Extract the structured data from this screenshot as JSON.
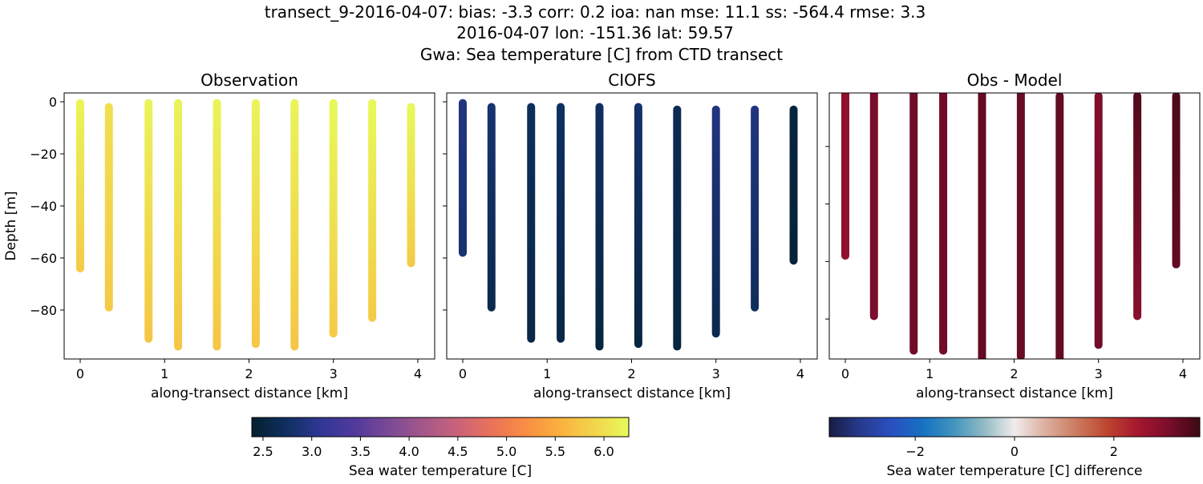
{
  "title_lines": [
    "transect_9-2016-04-07: bias: -3.3  corr: 0.2  ioa: nan  mse: 11.1  ss: -564.4  rmse: 3.3",
    "2016-04-07 lon: -151.36 lat: 59.57",
    "Gwa: Sea temperature [C] from CTD transect"
  ],
  "chart_data": [
    {
      "type": "scatter",
      "title": "Observation",
      "xlabel": "along-transect distance [km]",
      "ylabel": "Depth [m]",
      "xlim": [
        -0.19,
        4.2
      ],
      "ylim": [
        -98.8,
        3.4
      ],
      "xticks": [
        0,
        1,
        2,
        3,
        4
      ],
      "yticks": [
        0,
        -20,
        -40,
        -60,
        -80
      ],
      "colormap": "thermal",
      "profiles": [
        {
          "x": 0.0,
          "top": -0.5,
          "bottom": -64,
          "t_top": 6.2,
          "t_bottom": 5.8
        },
        {
          "x": 0.34,
          "top": -2,
          "bottom": -79,
          "t_top": 6.0,
          "t_bottom": 5.8
        },
        {
          "x": 0.81,
          "top": -0.5,
          "bottom": -91,
          "t_top": 6.2,
          "t_bottom": 5.75
        },
        {
          "x": 1.16,
          "top": -0.5,
          "bottom": -94,
          "t_top": 6.2,
          "t_bottom": 5.75
        },
        {
          "x": 1.62,
          "top": -0.5,
          "bottom": -94,
          "t_top": 6.2,
          "t_bottom": 5.75
        },
        {
          "x": 2.08,
          "top": -0.5,
          "bottom": -93,
          "t_top": 6.2,
          "t_bottom": 5.75
        },
        {
          "x": 2.54,
          "top": -0.5,
          "bottom": -94,
          "t_top": 6.2,
          "t_bottom": 5.75
        },
        {
          "x": 3.0,
          "top": -0.5,
          "bottom": -89,
          "t_top": 6.25,
          "t_bottom": 5.8
        },
        {
          "x": 3.46,
          "top": -0.5,
          "bottom": -83,
          "t_top": 6.25,
          "t_bottom": 5.8
        },
        {
          "x": 3.92,
          "top": -2,
          "bottom": -62,
          "t_top": 6.25,
          "t_bottom": 5.8
        }
      ]
    },
    {
      "type": "scatter",
      "title": "CIOFS",
      "xlabel": "along-transect distance [km]",
      "ylabel": "",
      "xlim": [
        -0.19,
        4.2
      ],
      "ylim": [
        -98.8,
        3.4
      ],
      "xticks": [
        0,
        1,
        2,
        3,
        4
      ],
      "yticks": [
        0,
        -20,
        -40,
        -60,
        -80
      ],
      "colormap": "thermal",
      "profiles": [
        {
          "x": 0.0,
          "top": -0.5,
          "bottom": -58,
          "t_top": 2.95,
          "t_bottom": 2.85
        },
        {
          "x": 0.34,
          "top": -2,
          "bottom": -79,
          "t_top": 2.85,
          "t_bottom": 2.6
        },
        {
          "x": 0.81,
          "top": -2,
          "bottom": -91,
          "t_top": 2.7,
          "t_bottom": 2.55
        },
        {
          "x": 1.16,
          "top": -2,
          "bottom": -91,
          "t_top": 2.75,
          "t_bottom": 2.55
        },
        {
          "x": 1.62,
          "top": -2,
          "bottom": -94,
          "t_top": 2.75,
          "t_bottom": 2.5
        },
        {
          "x": 2.08,
          "top": -2,
          "bottom": -93,
          "t_top": 2.8,
          "t_bottom": 2.5
        },
        {
          "x": 2.54,
          "top": -3,
          "bottom": -94,
          "t_top": 2.65,
          "t_bottom": 2.5
        },
        {
          "x": 3.0,
          "top": -3,
          "bottom": -89,
          "t_top": 2.95,
          "t_bottom": 2.6
        },
        {
          "x": 3.46,
          "top": -3,
          "bottom": -79,
          "t_top": 2.95,
          "t_bottom": 2.7
        },
        {
          "x": 3.92,
          "top": -3,
          "bottom": -61,
          "t_top": 2.5,
          "t_bottom": 2.45
        }
      ]
    },
    {
      "type": "scatter",
      "title": "Obs - Model",
      "xlabel": "along-transect distance [km]",
      "ylabel": "",
      "xlim": [
        -0.19,
        4.2
      ],
      "ylim": [
        -93.9,
        -1.4
      ],
      "xticks": [
        0,
        1,
        2,
        3,
        4
      ],
      "yticks": [
        -20,
        -40,
        -60,
        -80
      ],
      "colormap": "balance",
      "profiles": [
        {
          "x": 0.0,
          "top": 0,
          "bottom": -58,
          "t_top": 2.8,
          "t_bottom": 2.8
        },
        {
          "x": 0.34,
          "top": 0,
          "bottom": -79,
          "t_top": 3.1,
          "t_bottom": 3.1
        },
        {
          "x": 0.81,
          "top": 0,
          "bottom": -91,
          "t_top": 3.2,
          "t_bottom": 3.2
        },
        {
          "x": 1.16,
          "top": 0,
          "bottom": -91,
          "t_top": 3.2,
          "t_bottom": 3.2
        },
        {
          "x": 1.62,
          "top": 0,
          "bottom": -96,
          "t_top": 3.35,
          "t_bottom": 3.35
        },
        {
          "x": 2.08,
          "top": 0,
          "bottom": -93,
          "t_top": 3.3,
          "t_bottom": 3.3
        },
        {
          "x": 2.54,
          "top": -2.5,
          "bottom": -96,
          "t_top": 3.35,
          "t_bottom": 3.35
        },
        {
          "x": 3.0,
          "top": -2.5,
          "bottom": -89,
          "t_top": 3.0,
          "t_bottom": 3.2
        },
        {
          "x": 3.46,
          "top": -2.5,
          "bottom": -79,
          "t_top": 3.5,
          "t_bottom": 2.9
        },
        {
          "x": 3.92,
          "top": -2.5,
          "bottom": -61,
          "t_top": 3.55,
          "t_bottom": 3.35
        }
      ]
    }
  ],
  "colorbars": [
    {
      "label": "Sea water temperature [C]",
      "range": [
        2.385,
        6.255
      ],
      "ticks": [
        "2.5",
        "3.0",
        "3.5",
        "4.0",
        "4.5",
        "5.0",
        "5.5",
        "6.0"
      ],
      "colormap": "thermal"
    },
    {
      "label": "Sea water temperature [C] difference",
      "range": [
        -3.73,
        3.73
      ],
      "ticks": [
        "−2",
        "0",
        "2"
      ],
      "colormap": "balance"
    }
  ],
  "colormaps": {
    "thermal": [
      "#04202f",
      "#0f2f60",
      "#2f3795",
      "#51399b",
      "#7a4a95",
      "#a4578a",
      "#c9627a",
      "#ea7258",
      "#f98e43",
      "#fbb13e",
      "#f2d54b",
      "#e7fa5a"
    ],
    "balance": [
      "#181c43",
      "#273a8e",
      "#2a4fc0",
      "#1670c2",
      "#3f93bd",
      "#8fbac3",
      "#f1ecec",
      "#dcae9e",
      "#cc7c60",
      "#bd4530",
      "#a5162e",
      "#7a0d2c",
      "#3c0912"
    ]
  }
}
